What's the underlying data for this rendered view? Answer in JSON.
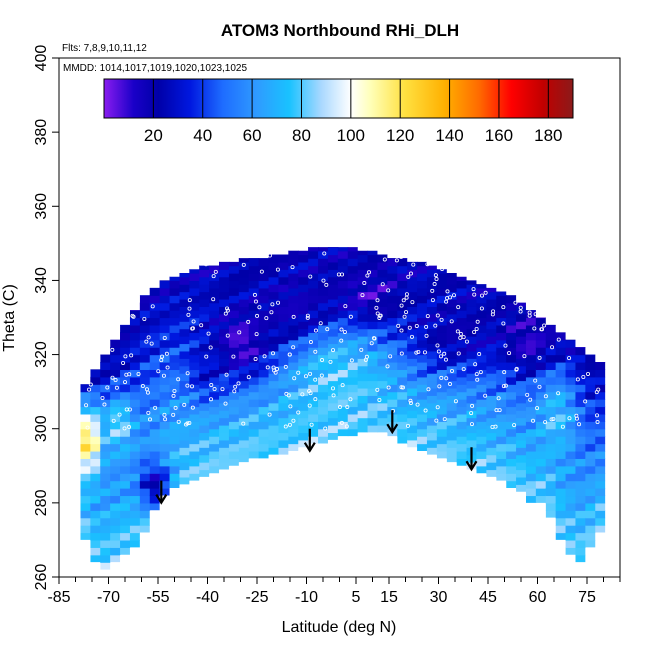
{
  "chart_data": {
    "type": "heatmap",
    "title": "ATOM3 Northbound RHi_DLH",
    "annotations": {
      "flights": "Flts: 7,8,9,10,11,12",
      "dates": "MMDD: 1014,1017,1019,1020,1023,1025"
    },
    "xlabel": "Latitude (deg N)",
    "ylabel": "Theta (C)",
    "xlim": [
      -85,
      85
    ],
    "ylim": [
      260,
      400
    ],
    "x_ticks": [
      -85,
      -70,
      -55,
      -40,
      -25,
      -10,
      5,
      15,
      30,
      45,
      60,
      75
    ],
    "x_tick_labels": [
      "-85",
      "-70",
      "-55",
      "-40",
      "-25",
      "-10",
      "5",
      "15",
      "30",
      "45",
      "60",
      "75"
    ],
    "y_ticks": [
      260,
      280,
      300,
      320,
      340,
      360,
      380,
      400
    ],
    "y_tick_labels": [
      "260",
      "280",
      "300",
      "320",
      "340",
      "360",
      "380",
      "400"
    ],
    "colorbar": {
      "range": [
        0,
        190
      ],
      "ticks": [
        20,
        40,
        60,
        80,
        100,
        120,
        140,
        160,
        180
      ],
      "tick_labels": [
        "20",
        "40",
        "60",
        "80",
        "100",
        "120",
        "140",
        "160",
        "180"
      ],
      "stops": [
        {
          "v": 0,
          "color": "#8a1cf0"
        },
        {
          "v": 12,
          "color": "#1a00c8"
        },
        {
          "v": 22,
          "color": "#0000a8"
        },
        {
          "v": 35,
          "color": "#0018e0"
        },
        {
          "v": 48,
          "color": "#1e6cff"
        },
        {
          "v": 62,
          "color": "#2f9bff"
        },
        {
          "v": 75,
          "color": "#19c2ff"
        },
        {
          "v": 88,
          "color": "#a9d8ff"
        },
        {
          "v": 100,
          "color": "#ffffff"
        },
        {
          "v": 108,
          "color": "#ffffb8"
        },
        {
          "v": 122,
          "color": "#ffe040"
        },
        {
          "v": 138,
          "color": "#ffb000"
        },
        {
          "v": 152,
          "color": "#ff6a00"
        },
        {
          "v": 165,
          "color": "#ff0000"
        },
        {
          "v": 178,
          "color": "#c00000"
        },
        {
          "v": 190,
          "color": "#8c1a1a"
        }
      ]
    },
    "arrows": [
      {
        "lat": -54,
        "theta": 286
      },
      {
        "lat": -9,
        "theta": 300
      },
      {
        "lat": 16,
        "theta": 305
      },
      {
        "lat": 40,
        "theta": 295
      }
    ],
    "field": {
      "description_bins": "coverage envelope: theta range per latitude bin",
      "lat_step": 3,
      "theta_step": 2,
      "envelope": [
        {
          "lat": -77,
          "bottom": 270,
          "top": 312
        },
        {
          "lat": -74,
          "bottom": 264,
          "top": 316
        },
        {
          "lat": -71,
          "bottom": 262,
          "top": 320
        },
        {
          "lat": -68,
          "bottom": 264,
          "top": 324
        },
        {
          "lat": -65,
          "bottom": 266,
          "top": 328
        },
        {
          "lat": -62,
          "bottom": 268,
          "top": 332
        },
        {
          "lat": -59,
          "bottom": 272,
          "top": 336
        },
        {
          "lat": -56,
          "bottom": 278,
          "top": 338
        },
        {
          "lat": -53,
          "bottom": 282,
          "top": 340
        },
        {
          "lat": -50,
          "bottom": 284,
          "top": 341
        },
        {
          "lat": -47,
          "bottom": 285,
          "top": 342
        },
        {
          "lat": -44,
          "bottom": 286,
          "top": 343
        },
        {
          "lat": -41,
          "bottom": 287,
          "top": 344
        },
        {
          "lat": -38,
          "bottom": 288,
          "top": 344
        },
        {
          "lat": -35,
          "bottom": 289,
          "top": 345
        },
        {
          "lat": -32,
          "bottom": 290,
          "top": 345
        },
        {
          "lat": -29,
          "bottom": 291,
          "top": 346
        },
        {
          "lat": -26,
          "bottom": 292,
          "top": 346
        },
        {
          "lat": -23,
          "bottom": 292,
          "top": 346
        },
        {
          "lat": -20,
          "bottom": 293,
          "top": 347
        },
        {
          "lat": -17,
          "bottom": 293,
          "top": 347
        },
        {
          "lat": -14,
          "bottom": 294,
          "top": 348
        },
        {
          "lat": -11,
          "bottom": 295,
          "top": 348
        },
        {
          "lat": -8,
          "bottom": 296,
          "top": 349
        },
        {
          "lat": -5,
          "bottom": 296,
          "top": 349
        },
        {
          "lat": -2,
          "bottom": 297,
          "top": 349
        },
        {
          "lat": 1,
          "bottom": 298,
          "top": 349
        },
        {
          "lat": 4,
          "bottom": 298,
          "top": 349
        },
        {
          "lat": 7,
          "bottom": 299,
          "top": 348
        },
        {
          "lat": 10,
          "bottom": 299,
          "top": 348
        },
        {
          "lat": 13,
          "bottom": 299,
          "top": 347
        },
        {
          "lat": 16,
          "bottom": 298,
          "top": 346
        },
        {
          "lat": 19,
          "bottom": 296,
          "top": 346
        },
        {
          "lat": 22,
          "bottom": 295,
          "top": 345
        },
        {
          "lat": 25,
          "bottom": 294,
          "top": 345
        },
        {
          "lat": 28,
          "bottom": 293,
          "top": 344
        },
        {
          "lat": 31,
          "bottom": 292,
          "top": 343
        },
        {
          "lat": 34,
          "bottom": 291,
          "top": 342
        },
        {
          "lat": 37,
          "bottom": 290,
          "top": 341
        },
        {
          "lat": 40,
          "bottom": 289,
          "top": 340
        },
        {
          "lat": 43,
          "bottom": 288,
          "top": 339
        },
        {
          "lat": 46,
          "bottom": 287,
          "top": 338
        },
        {
          "lat": 49,
          "bottom": 286,
          "top": 337
        },
        {
          "lat": 52,
          "bottom": 284,
          "top": 336
        },
        {
          "lat": 55,
          "bottom": 283,
          "top": 334
        },
        {
          "lat": 58,
          "bottom": 280,
          "top": 332
        },
        {
          "lat": 61,
          "bottom": 280,
          "top": 330
        },
        {
          "lat": 64,
          "bottom": 276,
          "top": 328
        },
        {
          "lat": 67,
          "bottom": 270,
          "top": 326
        },
        {
          "lat": 70,
          "bottom": 266,
          "top": 324
        },
        {
          "lat": 73,
          "bottom": 264,
          "top": 322
        },
        {
          "lat": 76,
          "bottom": 268,
          "top": 320
        },
        {
          "lat": 79,
          "bottom": 272,
          "top": 318
        }
      ],
      "features": [
        {
          "lat": -76,
          "theta": 296,
          "rl": 4,
          "rt": 10,
          "value": 125
        },
        {
          "lat": -56,
          "theta": 284,
          "rl": 5,
          "rt": 7,
          "value": 20
        },
        {
          "lat": -30,
          "theta": 322,
          "rl": 10,
          "rt": 10,
          "value": 5
        },
        {
          "lat": -12,
          "theta": 330,
          "rl": 14,
          "rt": 10,
          "value": 12
        },
        {
          "lat": 8,
          "theta": 334,
          "rl": 12,
          "rt": 8,
          "value": 8
        },
        {
          "lat": 35,
          "theta": 325,
          "rl": 16,
          "rt": 10,
          "value": 20
        },
        {
          "lat": 58,
          "theta": 322,
          "rl": 8,
          "rt": 8,
          "value": 10
        },
        {
          "lat": -67,
          "theta": 300,
          "rl": 5,
          "rt": 8,
          "value": 85
        },
        {
          "lat": 66,
          "theta": 302,
          "rl": 6,
          "rt": 12,
          "value": 75
        },
        {
          "lat": 0,
          "theta": 312,
          "rl": 14,
          "rt": 14,
          "value": 80
        },
        {
          "lat": -40,
          "theta": 315,
          "rl": 6,
          "rt": 8,
          "value": 30
        }
      ]
    }
  }
}
